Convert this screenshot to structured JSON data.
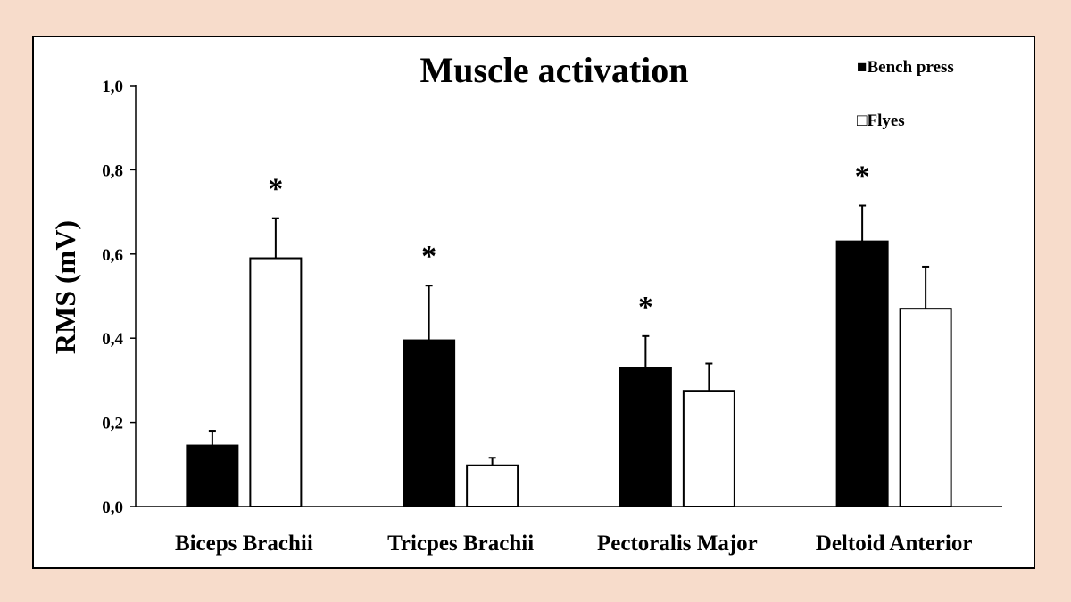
{
  "colors": {
    "page_background": "#f7dccb",
    "plot_background": "#ffffff",
    "bench_press": "#000000",
    "flyes": "#ffffff",
    "stroke": "#000000"
  },
  "chart_data": {
    "type": "bar",
    "title": "Muscle activation",
    "xlabel": "",
    "ylabel": "RMS (mV)",
    "ylim": [
      0,
      1.0
    ],
    "yticks": [
      0,
      0.2,
      0.4,
      0.6,
      0.8,
      1.0
    ],
    "ytick_labels": [
      "0,0",
      "0,2",
      "0,4",
      "0,6",
      "0,8",
      "1,0"
    ],
    "grid": false,
    "legend_position": "top-right",
    "categories": [
      "Biceps Brachii",
      "Tricpes Brachii",
      "Pectoralis Major",
      "Deltoid Anterior"
    ],
    "series": [
      {
        "name": "Bench press",
        "legend_marker": "■",
        "fill": "#000000",
        "values": [
          0.145,
          0.395,
          0.33,
          0.63
        ],
        "error": [
          0.035,
          0.13,
          0.075,
          0.085
        ],
        "significance": [
          "",
          "*",
          "*",
          "*"
        ]
      },
      {
        "name": "Flyes",
        "legend_marker": "□",
        "fill": "#ffffff",
        "values": [
          0.59,
          0.098,
          0.275,
          0.47
        ],
        "error": [
          0.095,
          0.018,
          0.065,
          0.1
        ],
        "significance": [
          "*",
          "",
          "",
          ""
        ]
      }
    ]
  }
}
